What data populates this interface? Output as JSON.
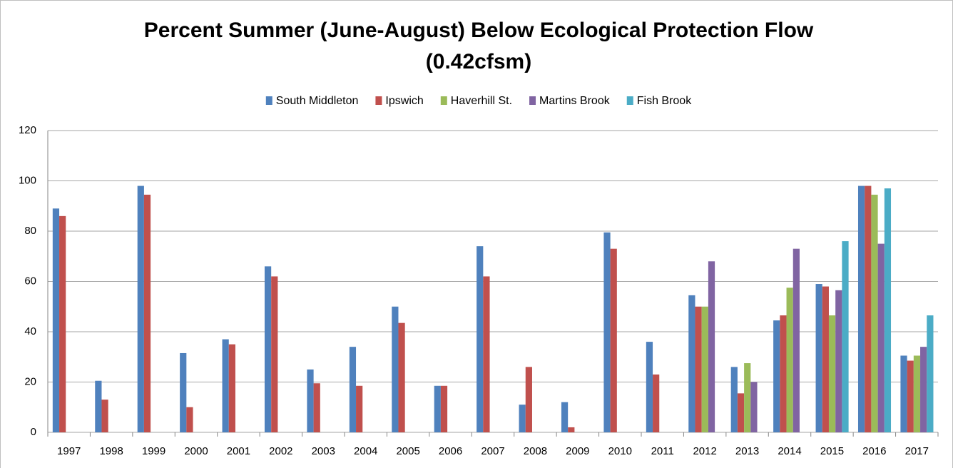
{
  "chart_data": {
    "type": "bar",
    "title": [
      "Percent Summer (June-August) Below Ecological Protection Flow",
      "(0.42cfsm)"
    ],
    "categories": [
      "1997",
      "1998",
      "1999",
      "2000",
      "2001",
      "2002",
      "2003",
      "2004",
      "2005",
      "2006",
      "2007",
      "2008",
      "2009",
      "2010",
      "2011",
      "2012",
      "2013",
      "2014",
      "2015",
      "2016",
      "2017"
    ],
    "series": [
      {
        "name": "South Middleton",
        "color": "#4f81bd",
        "values": [
          89,
          20.5,
          98,
          31.5,
          37,
          66,
          25,
          34,
          50,
          18.5,
          74,
          11,
          12,
          79.5,
          36,
          54.5,
          26,
          44.5,
          59,
          98,
          30.5
        ]
      },
      {
        "name": "Ipswich",
        "color": "#c0504d",
        "values": [
          86,
          13,
          94.5,
          10,
          35,
          62,
          19.5,
          18.5,
          43.5,
          18.5,
          62,
          26,
          2,
          73,
          23,
          50,
          15.5,
          46.5,
          58,
          98,
          28.5
        ]
      },
      {
        "name": "Haverhill St.",
        "color": "#9bbb59",
        "values": [
          null,
          null,
          null,
          null,
          null,
          null,
          null,
          null,
          null,
          null,
          null,
          null,
          null,
          null,
          null,
          50,
          27.5,
          57.5,
          46.5,
          94.5,
          30.5
        ]
      },
      {
        "name": "Martins Brook",
        "color": "#8064a2",
        "values": [
          null,
          null,
          null,
          null,
          null,
          null,
          null,
          null,
          null,
          null,
          null,
          null,
          null,
          null,
          null,
          68,
          20,
          73,
          56.5,
          75,
          34
        ]
      },
      {
        "name": "Fish Brook",
        "color": "#4bacc6",
        "values": [
          null,
          null,
          null,
          null,
          null,
          null,
          null,
          null,
          null,
          null,
          null,
          null,
          null,
          null,
          null,
          null,
          null,
          null,
          76,
          97,
          46.5
        ]
      }
    ],
    "ylim": [
      0,
      120
    ],
    "yticks": [
      0,
      20,
      40,
      60,
      80,
      100,
      120
    ],
    "grid": true,
    "legend": "top"
  }
}
